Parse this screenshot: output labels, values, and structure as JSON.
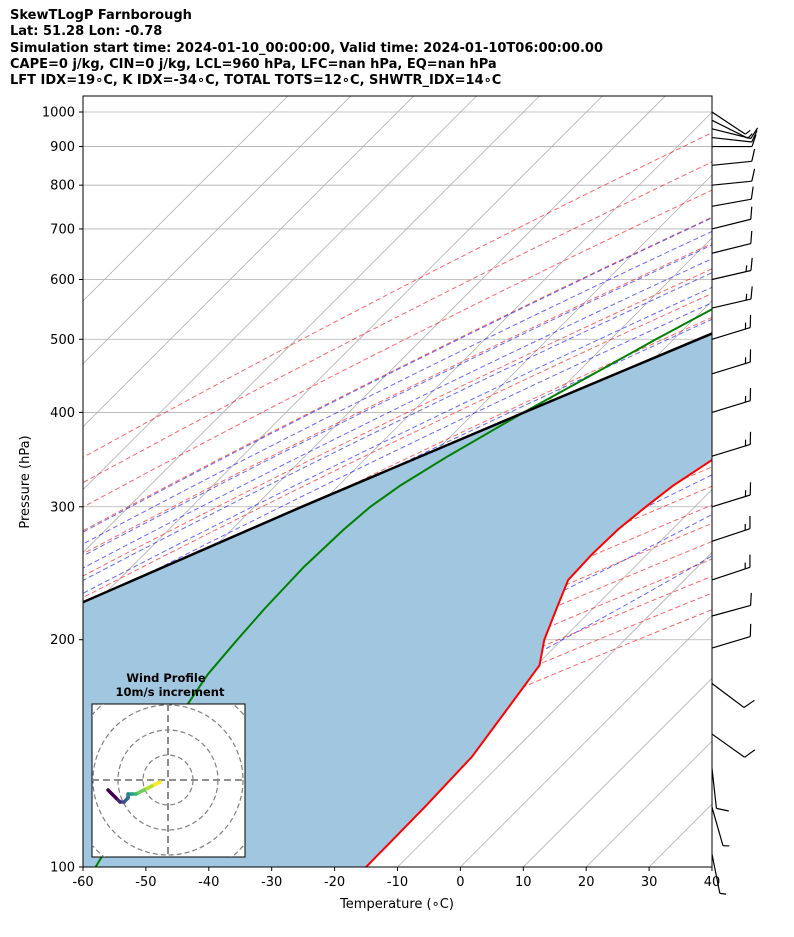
{
  "chart_data": {
    "type": "line",
    "title_lines": [
      "SkewTLogP Farnborough",
      "Lat: 51.28   Lon: -0.78",
      "Simulation start time: 2024-01-10_00:00:00, Valid time: 2024-01-10T06:00:00.00",
      "CAPE=0 j/kg, CIN=0 j/kg, LCL=960 hPa, LFC=nan hPa, EQ=nan hPa",
      "LFT IDX=19∘C, K IDX=-34∘C, TOTAL TOTS=12∘C, SHWTR_IDX=14∘C"
    ],
    "xlabel": "Temperature (∘C)",
    "ylabel": "Pressure (hPa)",
    "xlim": [
      -60,
      40
    ],
    "ylim": [
      1050,
      100
    ],
    "y_scale": "log",
    "x_ticks": [
      -60,
      -50,
      -40,
      -30,
      -20,
      -10,
      0,
      10,
      20,
      30,
      40
    ],
    "y_ticks": [
      1000,
      900,
      800,
      700,
      600,
      500,
      400,
      300,
      200,
      100
    ],
    "grid": true,
    "series": [
      {
        "name": "temperature",
        "color": "#ff0000",
        "p": [
          1013,
          1000,
          975,
          960,
          940,
          925,
          900,
          880,
          850,
          800,
          750,
          700,
          650,
          600,
          550,
          500,
          450,
          400,
          350,
          320,
          300,
          280,
          260,
          240,
          220,
          200,
          185,
          160,
          140,
          120,
          100
        ],
        "t": [
          0.3,
          1.3,
          1.2,
          0.5,
          0.6,
          1.7,
          3.6,
          4.1,
          3.8,
          2.3,
          0.5,
          -1.3,
          -3.8,
          -6.5,
          -9.2,
          -12.5,
          -16.2,
          -20.2,
          -24.4,
          -26.8,
          -27.8,
          -28.6,
          -28.8,
          -28.5,
          -25.8,
          -22.8,
          -19.5,
          -17.5,
          -15.7,
          -15.2,
          -15.0
        ]
      },
      {
        "name": "dewpoint",
        "color": "#008000",
        "p": [
          1000,
          990,
          975,
          960,
          950,
          940,
          925,
          910,
          900,
          880,
          870,
          850,
          800,
          750,
          700,
          650,
          600,
          550,
          500,
          450,
          400,
          350,
          320,
          300,
          280,
          250,
          220,
          200,
          180,
          160,
          140,
          120,
          100
        ],
        "t": [
          -3.5,
          -2.8,
          -2.0,
          -2.4,
          -3.5,
          -6.0,
          -9.5,
          -15,
          -24,
          -37,
          -40,
          -43,
          -45,
          -45.5,
          -45.5,
          -45.5,
          -45.8,
          -48.5,
          -52.8,
          -57.2,
          -62.2,
          -67.3,
          -70.2,
          -71.6,
          -72.2,
          -72.6,
          -72.2,
          -71.6,
          -70.8,
          -68.8,
          -65.0,
          -61.8,
          -58.0
        ]
      },
      {
        "name": "parcel",
        "color": "#000000",
        "p": [
          1013,
          960,
          900,
          800,
          700,
          600,
          500,
          400,
          300,
          200,
          150,
          100
        ],
        "t": [
          0.3,
          -3.0,
          -7.0,
          -14.2,
          -22.6,
          -33.1,
          -46.1,
          -62.1,
          -82.5,
          -109.8,
          -127.7,
          -151.5
        ]
      }
    ],
    "shaded_region": {
      "between": [
        "temperature",
        "parcel"
      ],
      "color": "#a1c6df"
    },
    "dry_adiabats_theta_k": [
      200,
      210,
      220,
      230,
      240,
      250,
      260,
      270,
      280,
      290,
      300,
      310,
      320,
      330,
      340,
      350,
      360,
      370,
      380,
      390,
      400,
      410,
      420
    ],
    "moist_adiabats_start_c": [
      -40,
      -35,
      -30,
      -25,
      -20,
      -15,
      -10,
      -5,
      0,
      5,
      10,
      15,
      20,
      25,
      30,
      35
    ],
    "isotherms_c": [
      -150,
      -140,
      -130,
      -120,
      -110,
      -100,
      -90,
      -80,
      -70,
      -60,
      -50,
      -40,
      -30,
      -20,
      -10,
      0,
      10,
      20,
      30,
      40
    ],
    "wind_barbs": [
      {
        "p": 1000,
        "u": -3,
        "v": 2
      },
      {
        "p": 975,
        "u": -6,
        "v": 3
      },
      {
        "p": 950,
        "u": -8,
        "v": 2
      },
      {
        "p": 925,
        "u": -9,
        "v": 1
      },
      {
        "p": 900,
        "u": -10,
        "v": 0
      },
      {
        "p": 850,
        "u": -10,
        "v": -1
      },
      {
        "p": 800,
        "u": -10,
        "v": -1
      },
      {
        "p": 750,
        "u": -11,
        "v": -2
      },
      {
        "p": 700,
        "u": -12,
        "v": -3
      },
      {
        "p": 650,
        "u": -12,
        "v": -3
      },
      {
        "p": 600,
        "u": -13,
        "v": -3
      },
      {
        "p": 550,
        "u": -13,
        "v": -3
      },
      {
        "p": 500,
        "u": -13,
        "v": -4
      },
      {
        "p": 450,
        "u": -13,
        "v": -4
      },
      {
        "p": 400,
        "u": -13,
        "v": -4
      },
      {
        "p": 350,
        "u": -13,
        "v": -4
      },
      {
        "p": 300,
        "u": -13,
        "v": -4
      },
      {
        "p": 270,
        "u": -12,
        "v": -4
      },
      {
        "p": 240,
        "u": -12,
        "v": -4
      },
      {
        "p": 215,
        "u": -11,
        "v": -3
      },
      {
        "p": 195,
        "u": -10,
        "v": -3
      },
      {
        "p": 175,
        "u": -8,
        "v": 6
      },
      {
        "p": 150,
        "u": -7,
        "v": 5
      },
      {
        "p": 135,
        "u": -1,
        "v": 9
      },
      {
        "p": 120,
        "u": -2,
        "v": 7
      },
      {
        "p": 104,
        "u": -1,
        "v": 5
      }
    ],
    "inset": {
      "title_lines": [
        "Wind Profile",
        "10m/s increment"
      ],
      "ring_step": 10,
      "hodograph_u": [
        -2,
        -4,
        -6,
        -8,
        -9,
        -10,
        -10,
        -11,
        -12,
        -13,
        -14,
        -15
      ],
      "hodograph_v": [
        2,
        1,
        0,
        -1,
        -1,
        -1,
        -2,
        -3,
        -3,
        -2,
        -1,
        0
      ],
      "colors": [
        "#fde725",
        "#b5de2b",
        "#6ece58",
        "#35b779",
        "#1f9e89",
        "#26828e",
        "#31688e",
        "#3e4989",
        "#482878",
        "#440154"
      ]
    }
  }
}
